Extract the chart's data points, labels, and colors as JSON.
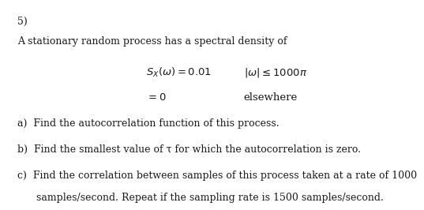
{
  "background_color": "#ffffff",
  "text_color": "#1a1a1a",
  "problem_number": "5)",
  "intro_line": "A stationary random process has a spectral density of",
  "eq_line1_left": "$S_X(\\omega) = 0.01$",
  "eq_line1_right": "$|\\omega| \\leq 1000\\pi$",
  "eq_line2_left": "$= 0$",
  "eq_line2_right": "elsewhere",
  "part_a": "a)  Find the autocorrelation function of this process.",
  "part_b": "b)  Find the smallest value of τ for which the autocorrelation is zero.",
  "part_c1": "c)  Find the correlation between samples of this process taken at a rate of 1000",
  "part_c2": "      samples/second. Repeat if the sampling rate is 1500 samples/second.",
  "font_size_main": 9.0,
  "font_size_eq": 9.5,
  "font_family": "serif"
}
